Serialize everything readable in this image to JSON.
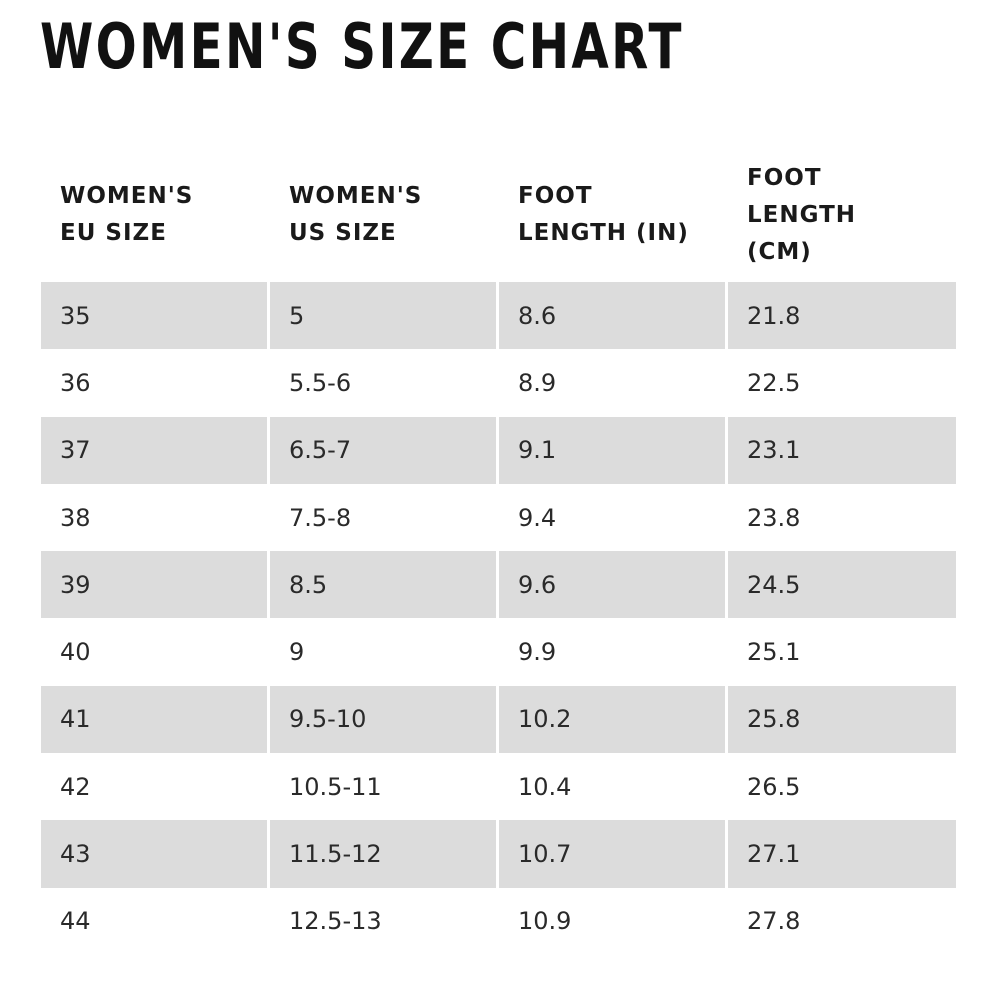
{
  "title": "WOMEN'S SIZE CHART",
  "table": {
    "headers": [
      "WOMEN'S\nEU SIZE",
      "WOMEN'S\nUS SIZE",
      "FOOT\nLENGTH (IN)",
      "FOOT\nLENGTH\n(CM)"
    ],
    "rows": [
      [
        "35",
        "5",
        "8.6",
        "21.8"
      ],
      [
        "36",
        "5.5-6",
        "8.9",
        "22.5"
      ],
      [
        "37",
        "6.5-7",
        "9.1",
        "23.1"
      ],
      [
        "38",
        "7.5-8",
        "9.4",
        "23.8"
      ],
      [
        "39",
        "8.5",
        "9.6",
        "24.5"
      ],
      [
        "40",
        "9",
        "9.9",
        "25.1"
      ],
      [
        "41",
        "9.5-10",
        "10.2",
        "25.8"
      ],
      [
        "42",
        "10.5-11",
        "10.4",
        "26.5"
      ],
      [
        "43",
        "11.5-12",
        "10.7",
        "27.1"
      ],
      [
        "44",
        "12.5-13",
        "10.9",
        "27.8"
      ]
    ]
  },
  "colors": {
    "stripe": "#dcdcdc",
    "text": "#1a1a1a",
    "background": "#ffffff"
  }
}
